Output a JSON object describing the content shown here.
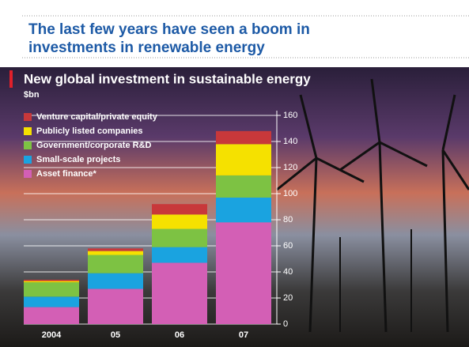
{
  "slide_title": "The last few years have seen a boom in investments in renewable energy",
  "chart_data": {
    "type": "stacked_bar",
    "title": "New global investment in sustainable energy",
    "subtitle": "$bn",
    "categories": [
      "2004",
      "05",
      "06",
      "07"
    ],
    "series": [
      {
        "name": "Venture capital/private equity",
        "color": "#c8383a",
        "values": [
          1,
          2,
          8,
          10
        ]
      },
      {
        "name": "Publicly listed companies",
        "color": "#f5e100",
        "values": [
          1,
          3,
          11,
          24
        ]
      },
      {
        "name": "Government/corporate R&D",
        "color": "#7dc243",
        "values": [
          11,
          14,
          14,
          17
        ]
      },
      {
        "name": "Small-scale projects",
        "color": "#1aa3e0",
        "values": [
          8,
          12,
          12,
          19
        ]
      },
      {
        "name": "Asset finance*",
        "color": "#d35fb5",
        "values": [
          13,
          27,
          47,
          78
        ]
      }
    ],
    "ylim": [
      0,
      160
    ],
    "yticks": [
      0,
      20,
      40,
      60,
      80,
      100,
      120,
      140,
      160
    ],
    "grid": true,
    "legend": "top-left"
  }
}
